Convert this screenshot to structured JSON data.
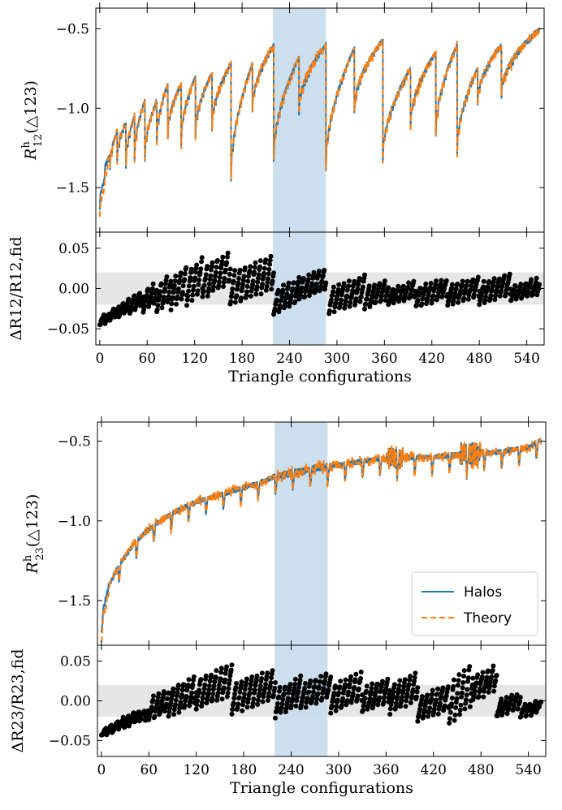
{
  "colors": {
    "halos": "#1f77b4",
    "theory": "#ff7f0e",
    "points": "#000000",
    "band": "#e6e6e6",
    "highlight": "#c6dbec"
  },
  "chart_data": [
    {
      "type": "line",
      "panel": "R12 main",
      "ylabel_main": "R",
      "ylabel_sup": "h",
      "ylabel_sub": "12",
      "ylabel_tail": "(△123)",
      "xlim": [
        -5,
        562
      ],
      "ylim": [
        -1.78,
        -0.37
      ],
      "yticks": [
        -1.5,
        -1.0,
        -0.5
      ],
      "ytick_labels": [
        "−1.5",
        "−1.0",
        "−0.5"
      ],
      "highlight_x": [
        219,
        286
      ],
      "legend": null,
      "series": [
        {
          "name": "Halos",
          "style": "solid",
          "segments": [
            [
              0,
              6,
              -1.6,
              -1.45
            ],
            [
              6,
              13,
              -1.4,
              -1.3
            ],
            [
              13,
              22,
              -1.35,
              -1.15
            ],
            [
              22,
              33,
              -1.3,
              -1.1
            ],
            [
              33,
              44,
              -1.35,
              -1.05
            ],
            [
              44,
              57,
              -1.3,
              -0.95
            ],
            [
              57,
              72,
              -1.3,
              -0.95
            ],
            [
              72,
              86,
              -1.2,
              -0.85
            ],
            [
              86,
              103,
              -1.15,
              -0.85
            ],
            [
              103,
              121,
              -1.2,
              -0.8
            ],
            [
              121,
              142,
              -1.15,
              -0.78
            ],
            [
              142,
              166,
              -1.1,
              -0.72
            ],
            [
              166,
              193,
              -1.42,
              -0.72
            ],
            [
              193,
              220,
              -1.0,
              -0.6
            ],
            [
              220,
              252,
              -1.3,
              -0.68
            ],
            [
              252,
              286,
              -1.0,
              -0.6
            ],
            [
              286,
              322,
              -1.35,
              -0.62
            ],
            [
              322,
              358,
              -1.0,
              -0.57
            ],
            [
              358,
              393,
              -1.3,
              -0.75
            ],
            [
              393,
              425,
              -1.1,
              -0.65
            ],
            [
              425,
              452,
              -1.15,
              -0.6
            ],
            [
              452,
              478,
              -1.25,
              -0.75
            ],
            [
              478,
              508,
              -0.95,
              -0.6
            ],
            [
              508,
              556,
              -0.9,
              -0.5
            ]
          ]
        },
        {
          "name": "Theory",
          "style": "dashed",
          "offset_at_start": -0.07
        }
      ]
    },
    {
      "type": "scatter",
      "panel": "R12 residual",
      "ylabel": "ΔR12/R12,fid",
      "xlabel": "Triangle configurations",
      "xlim": [
        -5,
        562
      ],
      "ylim": [
        -0.07,
        0.07
      ],
      "yticks": [
        -0.05,
        0.0,
        0.05
      ],
      "ytick_labels": [
        "−0.05",
        "0.00",
        "0.05"
      ],
      "xticks": [
        0,
        60,
        120,
        180,
        240,
        300,
        360,
        420,
        480,
        540
      ],
      "band": [
        -0.02,
        0.02
      ],
      "highlight_x": [
        219,
        286
      ],
      "runs": [
        [
          0,
          12,
          -0.045,
          -0.03
        ],
        [
          12,
          24,
          -0.04,
          -0.022
        ],
        [
          24,
          38,
          -0.035,
          -0.012
        ],
        [
          38,
          55,
          -0.03,
          -0.002
        ],
        [
          55,
          72,
          -0.028,
          0.008
        ],
        [
          72,
          90,
          -0.03,
          0.018
        ],
        [
          90,
          110,
          -0.025,
          0.028
        ],
        [
          110,
          130,
          -0.02,
          0.038
        ],
        [
          130,
          165,
          -0.012,
          0.046
        ],
        [
          165,
          220,
          -0.02,
          0.04
        ],
        [
          220,
          252,
          -0.032,
          0.012
        ],
        [
          252,
          286,
          -0.015,
          0.025
        ],
        [
          290,
          335,
          -0.03,
          0.015
        ],
        [
          335,
          365,
          -0.025,
          0.012
        ],
        [
          365,
          400,
          -0.02,
          0.008
        ],
        [
          400,
          440,
          -0.022,
          0.012
        ],
        [
          440,
          480,
          -0.02,
          0.015
        ],
        [
          480,
          520,
          -0.018,
          0.018
        ],
        [
          520,
          556,
          -0.015,
          0.012
        ]
      ]
    },
    {
      "type": "line",
      "panel": "R23 main",
      "ylabel_main": "R",
      "ylabel_sup": "h",
      "ylabel_sub": "23",
      "ylabel_tail": "(△123)",
      "xlim": [
        -5,
        562
      ],
      "ylim": [
        -1.78,
        -0.38
      ],
      "yticks": [
        -1.5,
        -1.0,
        -0.5
      ],
      "ytick_labels": [
        "−1.5",
        "−1.0",
        "−0.5"
      ],
      "highlight_x": [
        219,
        286
      ],
      "legend": {
        "position": "lower-right",
        "entries": [
          "Halos",
          "Theory"
        ]
      },
      "series": [
        {
          "name": "Halos",
          "style": "solid",
          "trend": [
            [
              0,
              -1.6
            ],
            [
              10,
              -1.4
            ],
            [
              20,
              -1.3
            ],
            [
              40,
              -1.15
            ],
            [
              60,
              -1.05
            ],
            [
              90,
              -0.95
            ],
            [
              120,
              -0.88
            ],
            [
              160,
              -0.82
            ],
            [
              200,
              -0.76
            ],
            [
              220,
              -0.72
            ],
            [
              260,
              -0.68
            ],
            [
              300,
              -0.65
            ],
            [
              340,
              -0.62
            ],
            [
              380,
              -0.6
            ],
            [
              420,
              -0.6
            ],
            [
              460,
              -0.58
            ],
            [
              500,
              -0.57
            ],
            [
              540,
              -0.54
            ],
            [
              556,
              -0.49
            ]
          ]
        },
        {
          "name": "Theory",
          "style": "dashed"
        }
      ]
    },
    {
      "type": "scatter",
      "panel": "R23 residual",
      "ylabel": "ΔR23/R23,fid",
      "xlabel": "Triangle configurations",
      "xlim": [
        -5,
        562
      ],
      "ylim": [
        -0.07,
        0.07
      ],
      "yticks": [
        -0.05,
        0.0,
        0.05
      ],
      "ytick_labels": [
        "−0.05",
        "0.00",
        "0.05"
      ],
      "xticks": [
        0,
        60,
        120,
        180,
        240,
        300,
        360,
        420,
        480,
        540
      ],
      "band": [
        -0.02,
        0.02
      ],
      "highlight_x": [
        219,
        286
      ],
      "runs": [
        [
          0,
          15,
          -0.045,
          -0.03
        ],
        [
          15,
          35,
          -0.038,
          -0.02
        ],
        [
          35,
          60,
          -0.03,
          -0.01
        ],
        [
          60,
          85,
          -0.025,
          0.015
        ],
        [
          85,
          120,
          -0.02,
          0.03
        ],
        [
          120,
          165,
          -0.01,
          0.045
        ],
        [
          165,
          220,
          -0.015,
          0.04
        ],
        [
          220,
          252,
          -0.02,
          0.03
        ],
        [
          252,
          290,
          -0.01,
          0.035
        ],
        [
          290,
          330,
          -0.015,
          0.035
        ],
        [
          330,
          365,
          -0.015,
          0.03
        ],
        [
          365,
          400,
          -0.015,
          0.035
        ],
        [
          400,
          440,
          -0.025,
          0.02
        ],
        [
          440,
          470,
          -0.03,
          0.048
        ],
        [
          470,
          500,
          0.0,
          0.045
        ],
        [
          500,
          530,
          -0.02,
          0.01
        ],
        [
          530,
          556,
          -0.02,
          0.0
        ]
      ]
    }
  ]
}
